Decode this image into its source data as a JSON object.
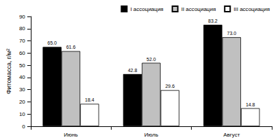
{
  "chart_data": {
    "type": "bar",
    "y_label": "Фитомасса, г/м²",
    "categories": [
      "Июнь",
      "Июль",
      "Август"
    ],
    "series": [
      {
        "name": "I ассоциация",
        "color": "#000000",
        "values": [
          65.0,
          42.8,
          83.2
        ],
        "value_labels": [
          "65.0",
          "42.8",
          "83.2"
        ]
      },
      {
        "name": "II ассоциация",
        "color": "#c0c0c0",
        "values": [
          61.6,
          52.0,
          73.0
        ],
        "value_labels": [
          "61.6",
          "52.0",
          "73.0"
        ]
      },
      {
        "name": "III ассоциация",
        "color": "#ffffff",
        "values": [
          18.4,
          29.6,
          14.8
        ],
        "value_labels": [
          "18.4",
          "29.6",
          "14.8"
        ]
      }
    ],
    "ylim": [
      0,
      90
    ],
    "yticks": [
      0,
      10,
      20,
      30,
      40,
      50,
      60,
      70,
      80,
      90
    ],
    "grid": false,
    "legend": "top",
    "data_labels": true
  }
}
